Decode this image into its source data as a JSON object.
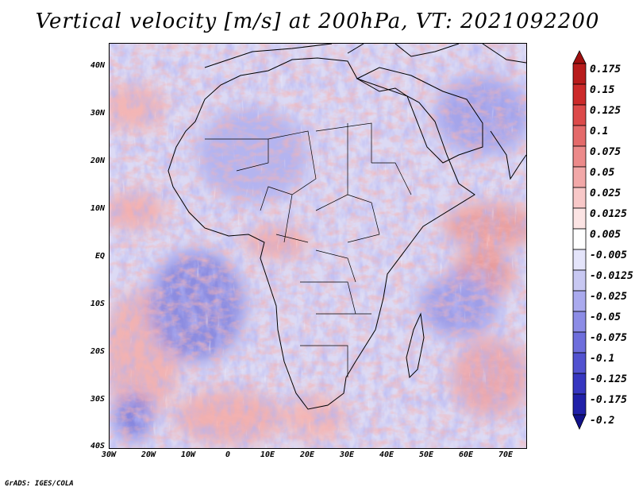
{
  "title": "Vertical velocity [m/s] at 200hPa, VT: 2021092200",
  "credit": "GrADS: IGES/COLA",
  "map": {
    "variable": "Vertical velocity",
    "units": "m/s",
    "level": "200hPa",
    "valid_time": "2021092200",
    "region": "Africa",
    "lon_range": [
      -30,
      75
    ],
    "lat_range": [
      -40,
      45
    ],
    "lat_labels": [
      "40N",
      "30N",
      "20N",
      "10N",
      "EQ",
      "10S",
      "20S",
      "30S",
      "40S"
    ],
    "lon_labels": [
      "30W",
      "20W",
      "10W",
      "0",
      "10E",
      "20E",
      "30E",
      "40E",
      "50E",
      "60E",
      "70E"
    ]
  },
  "colorbar": {
    "levels": [
      "0.175",
      "0.15",
      "0.125",
      "0.1",
      "0.075",
      "0.05",
      "0.025",
      "0.0125",
      "0.005",
      "-0.005",
      "-0.0125",
      "-0.025",
      "-0.05",
      "-0.075",
      "-0.1",
      "-0.125",
      "-0.175",
      "-0.2"
    ],
    "colors": [
      "#a01010",
      "#b81c1c",
      "#cc2a2a",
      "#dc4a4a",
      "#e46a6a",
      "#ec8a8a",
      "#f2a8a8",
      "#f8c8c8",
      "#fce4e4",
      "#ffffff",
      "#e4e4fa",
      "#c8c8f2",
      "#aaaaee",
      "#8c8ce6",
      "#6e6edc",
      "#5252d0",
      "#3636c0",
      "#2020a8",
      "#12128a"
    ]
  },
  "colors": {
    "background": "#ffffff",
    "coast": "#000000",
    "positive": "#e87878",
    "negative": "#7070e0"
  }
}
